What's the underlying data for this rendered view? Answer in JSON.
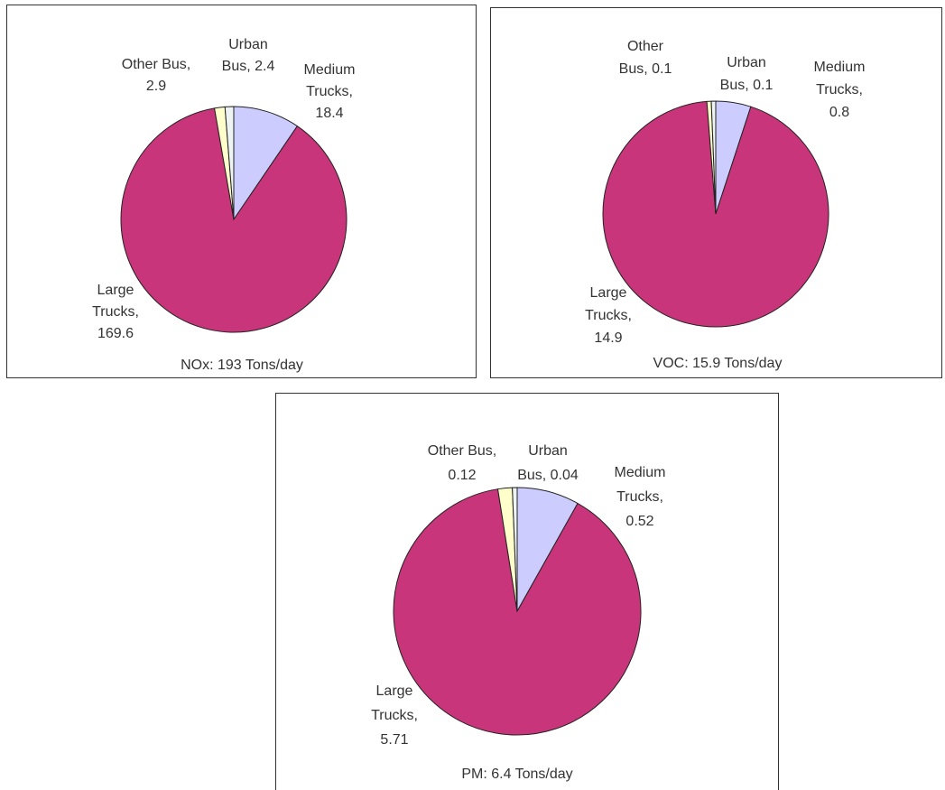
{
  "chart_data": [
    {
      "type": "pie",
      "caption": "NOx: 193 Tons/day",
      "values": [
        18.4,
        169.6,
        2.9,
        2.4
      ],
      "value_labels": [
        [
          "Medium",
          "Trucks,",
          "18.4"
        ],
        [
          "Large",
          "Trucks,",
          "169.6"
        ],
        [
          "Other Bus,",
          "2.9"
        ],
        [
          "Urban",
          "Bus, 2.4"
        ]
      ],
      "colors": [
        "#ccccff",
        "#c8357a",
        "#ffffcc",
        "#eef4f4"
      ]
    },
    {
      "type": "pie",
      "caption": "VOC: 15.9 Tons/day",
      "values": [
        0.8,
        14.9,
        0.1,
        0.1
      ],
      "value_labels": [
        [
          "Medium",
          "Trucks,",
          "0.8"
        ],
        [
          "Large",
          "Trucks,",
          "14.9"
        ],
        [
          "Other",
          "Bus, 0.1"
        ],
        [
          "Urban",
          "Bus, 0.1"
        ]
      ],
      "colors": [
        "#ccccff",
        "#c8357a",
        "#ffffcc",
        "#eef4f4"
      ]
    },
    {
      "type": "pie",
      "caption": "PM: 6.4 Tons/day",
      "values": [
        0.52,
        5.71,
        0.12,
        0.04
      ],
      "value_labels": [
        [
          "Medium",
          "Trucks,",
          "0.52"
        ],
        [
          "Large",
          "Trucks,",
          "5.71"
        ],
        [
          "Other Bus,",
          "0.12"
        ],
        [
          "Urban",
          "Bus, 0.04"
        ]
      ],
      "colors": [
        "#ccccff",
        "#c8357a",
        "#ffffcc",
        "#eef4f4"
      ]
    }
  ]
}
